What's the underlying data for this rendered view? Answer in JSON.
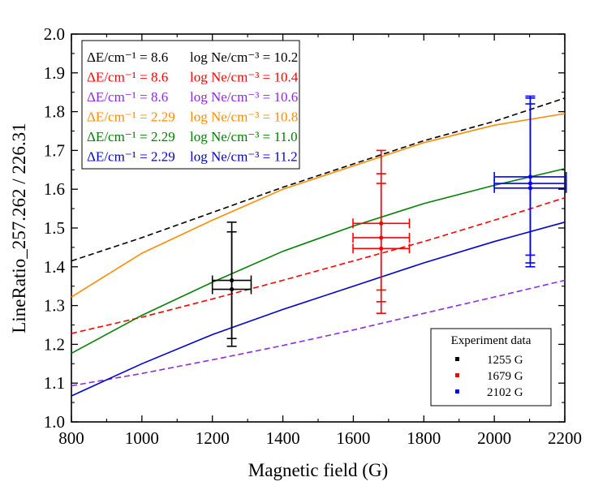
{
  "chart_data": {
    "type": "line",
    "xlabel": "Magnetic field (G)",
    "ylabel": "LineRatio_257.262 / 226.31",
    "xlim": [
      800,
      2200
    ],
    "ylim": [
      1.0,
      2.0
    ],
    "xticks": [
      "800",
      "1000",
      "1200",
      "1400",
      "1600",
      "1800",
      "2000",
      "2200"
    ],
    "yticks": [
      "1.0",
      "1.1",
      "1.2",
      "1.3",
      "1.4",
      "1.5",
      "1.6",
      "1.7",
      "1.8",
      "1.9",
      "2.0"
    ],
    "grid": false,
    "legend_position": "top-left",
    "series": [
      {
        "name_de": "ΔE/cm⁻¹ = 8.6",
        "name_ne": "log Ne/cm⁻³ = 10.2",
        "color": "#000000",
        "dash": true,
        "x": [
          800,
          1000,
          1200,
          1400,
          1600,
          1800,
          2000,
          2200
        ],
        "y": [
          1.415,
          1.475,
          1.54,
          1.605,
          1.665,
          1.725,
          1.775,
          1.835
        ]
      },
      {
        "name_de": "ΔE/cm⁻¹ = 8.6",
        "name_ne": "log Ne/cm⁻³ = 10.4",
        "color": "#ff0000",
        "dash": true,
        "x": [
          800,
          1000,
          1200,
          1400,
          1600,
          1800,
          2000,
          2200
        ],
        "y": [
          1.228,
          1.27,
          1.317,
          1.365,
          1.415,
          1.465,
          1.52,
          1.578
        ]
      },
      {
        "name_de": "ΔE/cm⁻¹ = 8.6",
        "name_ne": "log Ne/cm⁻³ = 10.6",
        "color": "#8b2be2",
        "dash": true,
        "x": [
          800,
          1000,
          1200,
          1400,
          1600,
          1800,
          2000,
          2200
        ],
        "y": [
          1.093,
          1.125,
          1.16,
          1.197,
          1.237,
          1.28,
          1.322,
          1.365
        ]
      },
      {
        "name_de": "ΔE/cm⁻¹ = 2.29",
        "name_ne": "log Ne/cm⁻³ = 10.8",
        "color": "#ff8c00",
        "dash": false,
        "x": [
          800,
          1000,
          1200,
          1400,
          1600,
          1800,
          2000,
          2200
        ],
        "y": [
          1.322,
          1.435,
          1.52,
          1.6,
          1.66,
          1.72,
          1.765,
          1.795
        ]
      },
      {
        "name_de": "ΔE/cm⁻¹ = 2.29",
        "name_ne": "log Ne/cm⁻³ = 11.0",
        "color": "#008000",
        "dash": false,
        "x": [
          800,
          1000,
          1200,
          1400,
          1600,
          1800,
          2000,
          2200
        ],
        "y": [
          1.177,
          1.275,
          1.36,
          1.44,
          1.505,
          1.563,
          1.61,
          1.653
        ]
      },
      {
        "name_de": "ΔE/cm⁻¹ = 2.29",
        "name_ne": "log Ne/cm⁻³ = 11.2",
        "color": "#0000cd",
        "dash": false,
        "x": [
          800,
          1000,
          1200,
          1400,
          1600,
          1800,
          2000,
          2200
        ],
        "y": [
          1.067,
          1.15,
          1.225,
          1.29,
          1.35,
          1.41,
          1.465,
          1.515
        ]
      }
    ],
    "experiment": {
      "title": "Experiment data",
      "groups": [
        {
          "label": "1255 G",
          "color": "#000000",
          "points": [
            {
              "x": 1255,
              "y": 1.365,
              "xerr": 55,
              "yerr": [
                1.215,
                1.515
              ]
            },
            {
              "x": 1255,
              "y": 1.342,
              "xerr": 55,
              "yerr": [
                1.195,
                1.49
              ]
            }
          ]
        },
        {
          "label": "1679 G",
          "color": "#ff0000",
          "points": [
            {
              "x": 1679,
              "y": 1.512,
              "xerr": 80,
              "yerr": [
                1.34,
                1.7
              ]
            },
            {
              "x": 1679,
              "y": 1.475,
              "xerr": 80,
              "yerr": [
                1.31,
                1.64
              ]
            },
            {
              "x": 1679,
              "y": 1.447,
              "xerr": 80,
              "yerr": [
                1.28,
                1.615
              ]
            }
          ]
        },
        {
          "label": "2102 G",
          "color": "#0000ff",
          "points": [
            {
              "x": 2102,
              "y": 1.632,
              "xerr": 102,
              "yerr": [
                1.43,
                1.84
              ]
            },
            {
              "x": 2102,
              "y": 1.615,
              "xerr": 102,
              "yerr": [
                1.41,
                1.835
              ]
            },
            {
              "x": 2102,
              "y": 1.603,
              "xerr": 102,
              "yerr": [
                1.4,
                1.82
              ]
            }
          ]
        }
      ]
    }
  }
}
